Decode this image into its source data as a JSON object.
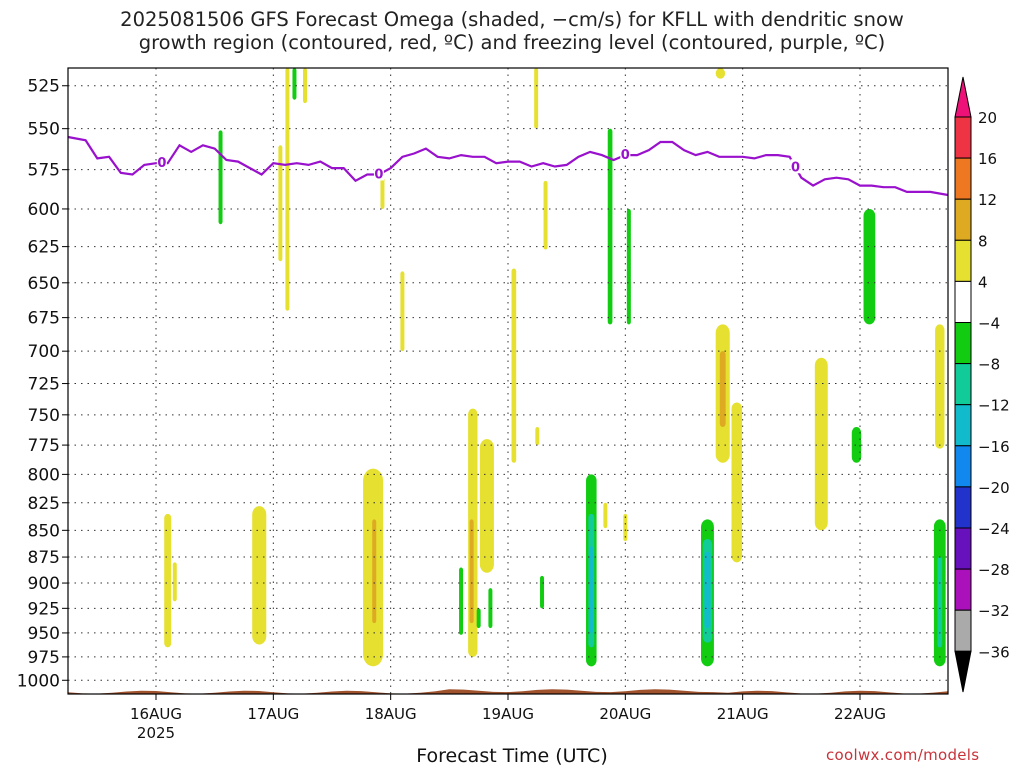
{
  "title_line1": "2025081506 GFS Forecast Omega (shaded, −cm/s) for KFLL with dendritic snow",
  "title_line2": "growth region (contoured, red, ºC) and freezing level (contoured, purple, ºC)",
  "xlabel": "Forecast Time (UTC)",
  "credit": "coolwx.com/models",
  "chart_data": {
    "type": "heatmap",
    "x_ticks": [
      {
        "day": 16,
        "label": "16AUG",
        "sub": "2025"
      },
      {
        "day": 17,
        "label": "17AUG",
        "sub": ""
      },
      {
        "day": 18,
        "label": "18AUG",
        "sub": ""
      },
      {
        "day": 19,
        "label": "19AUG",
        "sub": ""
      },
      {
        "day": 20,
        "label": "20AUG",
        "sub": ""
      },
      {
        "day": 21,
        "label": "21AUG",
        "sub": ""
      },
      {
        "day": 22,
        "label": "22AUG",
        "sub": ""
      }
    ],
    "xlim": [
      15.25,
      22.75
    ],
    "y_levels": [
      525,
      550,
      575,
      600,
      625,
      650,
      675,
      700,
      725,
      750,
      775,
      800,
      825,
      850,
      875,
      900,
      925,
      950,
      975,
      1000
    ],
    "ylim_hpa": [
      515,
      1015
    ],
    "colorbar": {
      "labels": [
        "20",
        "16",
        "12",
        "8",
        "4",
        "−4",
        "−8",
        "−12",
        "−16",
        "−20",
        "−24",
        "−28",
        "−32",
        "−36"
      ],
      "colors": [
        "#ee3344",
        "#ee7722",
        "#ddaa22",
        "#e6e030",
        "#ffffff",
        "#11cc11",
        "#11cc99",
        "#11bbcc",
        "#1188ee",
        "#2233cc",
        "#6611bb",
        "#aa11bb",
        "#aaaaaa"
      ],
      "top_arrow": "#ee1177",
      "bottom_arrow": "#000000"
    },
    "freezing_level_label": "0",
    "freezing_level_color": "#9911cc",
    "freezing_level": [
      [
        15.25,
        555
      ],
      [
        15.4,
        557
      ],
      [
        15.5,
        568
      ],
      [
        15.6,
        567
      ],
      [
        15.7,
        577
      ],
      [
        15.8,
        578
      ],
      [
        15.9,
        572
      ],
      [
        16.0,
        571
      ],
      [
        16.1,
        571
      ],
      [
        16.2,
        560
      ],
      [
        16.3,
        564
      ],
      [
        16.4,
        560
      ],
      [
        16.5,
        562
      ],
      [
        16.6,
        569
      ],
      [
        16.7,
        570
      ],
      [
        16.8,
        574
      ],
      [
        16.9,
        578
      ],
      [
        17.0,
        571
      ],
      [
        17.1,
        572
      ],
      [
        17.2,
        571
      ],
      [
        17.3,
        572
      ],
      [
        17.4,
        570
      ],
      [
        17.5,
        574
      ],
      [
        17.6,
        574
      ],
      [
        17.7,
        582
      ],
      [
        17.8,
        578
      ],
      [
        17.9,
        578
      ],
      [
        18.0,
        574
      ],
      [
        18.1,
        567
      ],
      [
        18.2,
        565
      ],
      [
        18.3,
        562
      ],
      [
        18.4,
        567
      ],
      [
        18.5,
        568
      ],
      [
        18.6,
        566
      ],
      [
        18.7,
        567
      ],
      [
        18.8,
        567
      ],
      [
        18.9,
        571
      ],
      [
        19.0,
        570
      ],
      [
        19.1,
        570
      ],
      [
        19.2,
        573
      ],
      [
        19.3,
        571
      ],
      [
        19.4,
        573
      ],
      [
        19.5,
        572
      ],
      [
        19.6,
        567
      ],
      [
        19.7,
        564
      ],
      [
        19.8,
        566
      ],
      [
        19.9,
        569
      ],
      [
        20.0,
        566
      ],
      [
        20.1,
        566
      ],
      [
        20.2,
        563
      ],
      [
        20.3,
        558
      ],
      [
        20.4,
        558
      ],
      [
        20.5,
        563
      ],
      [
        20.6,
        566
      ],
      [
        20.7,
        564
      ],
      [
        20.8,
        567
      ],
      [
        20.9,
        567
      ],
      [
        21.0,
        567
      ],
      [
        21.1,
        568
      ],
      [
        21.2,
        566
      ],
      [
        21.3,
        566
      ],
      [
        21.4,
        567
      ],
      [
        21.5,
        580
      ],
      [
        21.6,
        585
      ],
      [
        21.7,
        581
      ],
      [
        21.8,
        580
      ],
      [
        21.9,
        581
      ],
      [
        22.0,
        585
      ],
      [
        22.1,
        585
      ],
      [
        22.2,
        586
      ],
      [
        22.3,
        586
      ],
      [
        22.4,
        589
      ],
      [
        22.5,
        589
      ],
      [
        22.6,
        589
      ],
      [
        22.75,
        591
      ]
    ],
    "freezing_level_label_x": [
      16.05,
      17.9,
      20.0,
      21.45
    ],
    "shaded_regions": [
      {
        "x": 16.55,
        "p0": 551,
        "p1": 610,
        "w": 0.012,
        "color": "#11cc11"
      },
      {
        "x": 17.06,
        "p0": 560,
        "p1": 635,
        "w": 0.012,
        "color": "#e6e030"
      },
      {
        "x": 17.12,
        "p0": 515,
        "p1": 670,
        "w": 0.016,
        "color": "#e6e030"
      },
      {
        "x": 17.27,
        "p0": 515,
        "p1": 535,
        "w": 0.012,
        "color": "#e6e030"
      },
      {
        "x": 17.18,
        "p0": 515,
        "p1": 533,
        "w": 0.012,
        "color": "#11cc11"
      },
      {
        "x": 16.1,
        "p0": 835,
        "p1": 965,
        "w": 0.06,
        "color": "#e6e030"
      },
      {
        "x": 16.16,
        "p0": 880,
        "p1": 918,
        "w": 0.03,
        "color": "#e6e030"
      },
      {
        "x": 16.88,
        "p0": 828,
        "p1": 962,
        "w": 0.12,
        "color": "#e6e030"
      },
      {
        "x": 17.85,
        "p0": 795,
        "p1": 985,
        "w": 0.17,
        "color": "#e6e030"
      },
      {
        "x": 17.86,
        "p0": 840,
        "p1": 940,
        "w": 0.03,
        "color": "#ddaa22"
      },
      {
        "x": 17.93,
        "p0": 580,
        "p1": 600,
        "w": 0.012,
        "color": "#e6e030"
      },
      {
        "x": 18.1,
        "p0": 642,
        "p1": 700,
        "w": 0.014,
        "color": "#e6e030"
      },
      {
        "x": 18.7,
        "p0": 745,
        "p1": 975,
        "w": 0.08,
        "color": "#e6e030"
      },
      {
        "x": 18.82,
        "p0": 770,
        "p1": 890,
        "w": 0.12,
        "color": "#e6e030"
      },
      {
        "x": 18.69,
        "p0": 840,
        "p1": 940,
        "w": 0.03,
        "color": "#ddaa22"
      },
      {
        "x": 18.6,
        "p0": 885,
        "p1": 952,
        "w": 0.025,
        "color": "#11cc11"
      },
      {
        "x": 18.75,
        "p0": 925,
        "p1": 945,
        "w": 0.03,
        "color": "#11cc11"
      },
      {
        "x": 18.85,
        "p0": 905,
        "p1": 945,
        "w": 0.025,
        "color": "#11cc11"
      },
      {
        "x": 19.05,
        "p0": 640,
        "p1": 790,
        "w": 0.04,
        "color": "#e6e030"
      },
      {
        "x": 19.24,
        "p0": 515,
        "p1": 550,
        "w": 0.03,
        "color": "#e6e030"
      },
      {
        "x": 19.25,
        "p0": 760,
        "p1": 775,
        "w": 0.012,
        "color": "#e6e030"
      },
      {
        "x": 19.32,
        "p0": 582,
        "p1": 627,
        "w": 0.014,
        "color": "#e6e030"
      },
      {
        "x": 19.29,
        "p0": 893,
        "p1": 925,
        "w": 0.012,
        "color": "#11cc11"
      },
      {
        "x": 19.71,
        "p0": 800,
        "p1": 985,
        "w": 0.09,
        "color": "#11cc11"
      },
      {
        "x": 19.71,
        "p0": 835,
        "p1": 965,
        "w": 0.05,
        "color": "#11cc99"
      },
      {
        "x": 19.71,
        "p0": 865,
        "p1": 950,
        "w": 0.025,
        "color": "#11bbcc"
      },
      {
        "x": 19.83,
        "p0": 825,
        "p1": 848,
        "w": 0.012,
        "color": "#e6e030"
      },
      {
        "x": 19.87,
        "p0": 550,
        "p1": 680,
        "w": 0.04,
        "color": "#11cc11"
      },
      {
        "x": 20.03,
        "p0": 600,
        "p1": 680,
        "w": 0.02,
        "color": "#11cc11"
      },
      {
        "x": 20.0,
        "p0": 835,
        "p1": 860,
        "w": 0.03,
        "color": "#e6e030"
      },
      {
        "x": 20.7,
        "p0": 840,
        "p1": 985,
        "w": 0.11,
        "color": "#11cc11"
      },
      {
        "x": 20.7,
        "p0": 858,
        "p1": 960,
        "w": 0.08,
        "color": "#11cc99"
      },
      {
        "x": 20.7,
        "p0": 870,
        "p1": 945,
        "w": 0.05,
        "color": "#11bbcc"
      },
      {
        "x": 20.83,
        "p0": 680,
        "p1": 790,
        "w": 0.12,
        "color": "#e6e030"
      },
      {
        "x": 20.83,
        "p0": 700,
        "p1": 760,
        "w": 0.05,
        "color": "#ddaa22"
      },
      {
        "x": 20.95,
        "p0": 740,
        "p1": 880,
        "w": 0.09,
        "color": "#e6e030"
      },
      {
        "x": 20.81,
        "p0": 515,
        "p1": 521,
        "w": 0.08,
        "color": "#e6e030"
      },
      {
        "x": 21.67,
        "p0": 705,
        "p1": 850,
        "w": 0.11,
        "color": "#e6e030"
      },
      {
        "x": 21.97,
        "p0": 760,
        "p1": 790,
        "w": 0.08,
        "color": "#11cc11"
      },
      {
        "x": 22.08,
        "p0": 600,
        "p1": 680,
        "w": 0.1,
        "color": "#11cc11"
      },
      {
        "x": 22.68,
        "p0": 680,
        "p1": 778,
        "w": 0.08,
        "color": "#e6e030"
      },
      {
        "x": 22.68,
        "p0": 840,
        "p1": 985,
        "w": 0.1,
        "color": "#11cc11"
      },
      {
        "x": 22.68,
        "p0": 875,
        "p1": 965,
        "w": 0.04,
        "color": "#11cc99"
      }
    ],
    "terrain_color": "#a0522d",
    "grid": true
  }
}
